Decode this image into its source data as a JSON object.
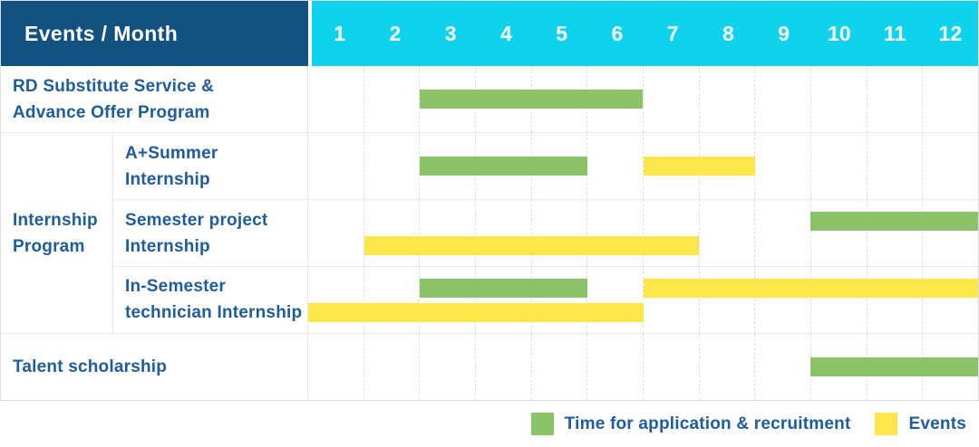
{
  "header": {
    "label": "Events / Month",
    "months": [
      "1",
      "2",
      "3",
      "4",
      "5",
      "6",
      "7",
      "8",
      "9",
      "10",
      "11",
      "12"
    ]
  },
  "colors": {
    "header_bg": "#135180",
    "month_strip_bg": "#10d2ec",
    "header_text": "#ffffff",
    "label_text": "#1e5c9b",
    "application_green": "#8cc269",
    "event_yellow": "#fde64a",
    "grid_line": "#e7e9eb",
    "month_divider": "#dde0e3"
  },
  "gantt": {
    "row_groups": [
      {
        "group_label_lines": null,
        "rows": [
          {
            "label_lines": [
              "RD Substitute Service &",
              "Advance Offer Program"
            ],
            "bars": [
              {
                "type": "application",
                "start": 3,
                "end": 6,
                "lane": "center"
              }
            ]
          }
        ]
      },
      {
        "group_label_lines": [
          "Internship",
          "Program"
        ],
        "rows": [
          {
            "label_lines": [
              "A+Summer",
              "Internship"
            ],
            "bars": [
              {
                "type": "application",
                "start": 3,
                "end": 5,
                "lane": "center"
              },
              {
                "type": "event",
                "start": 7,
                "end": 8,
                "lane": "center"
              }
            ]
          },
          {
            "label_lines": [
              "Semester project",
              "Internship"
            ],
            "bars": [
              {
                "type": "application",
                "start": 10,
                "end": 12,
                "lane": "top"
              },
              {
                "type": "event",
                "start": 2,
                "end": 7,
                "lane": "bottom"
              }
            ]
          },
          {
            "label_lines": [
              "In-Semester",
              "technician Internship"
            ],
            "bars": [
              {
                "type": "application",
                "start": 3,
                "end": 5,
                "lane": "top"
              },
              {
                "type": "event",
                "start": 7,
                "end": 12,
                "lane": "top"
              },
              {
                "type": "event",
                "start": 1,
                "end": 6,
                "lane": "bottom"
              }
            ]
          }
        ]
      },
      {
        "group_label_lines": null,
        "rows": [
          {
            "label_lines": [
              "Talent scholarship"
            ],
            "bars": [
              {
                "type": "application",
                "start": 10,
                "end": 12,
                "lane": "center"
              }
            ]
          }
        ]
      }
    ]
  },
  "legend": [
    {
      "type": "application",
      "label": "Time for application & recruitment"
    },
    {
      "type": "event",
      "label": "Events"
    }
  ],
  "chart_data": {
    "type": "table",
    "subtype": "gantt",
    "title": "Events / Month",
    "x": {
      "label": "Month",
      "ticks": [
        1,
        2,
        3,
        4,
        5,
        6,
        7,
        8,
        9,
        10,
        11,
        12
      ]
    },
    "legend": [
      "Time for application & recruitment",
      "Events"
    ],
    "rows": [
      {
        "event": "RD Substitute Service & Advance Offer Program",
        "group": null,
        "application_recruitment_months": [
          [
            3,
            6
          ]
        ],
        "event_months": []
      },
      {
        "event": "A+Summer Internship",
        "group": "Internship Program",
        "application_recruitment_months": [
          [
            3,
            5
          ]
        ],
        "event_months": [
          [
            7,
            8
          ]
        ]
      },
      {
        "event": "Semester project Internship",
        "group": "Internship Program",
        "application_recruitment_months": [
          [
            10,
            12
          ]
        ],
        "event_months": [
          [
            2,
            7
          ]
        ]
      },
      {
        "event": "In-Semester technician Internship",
        "group": "Internship Program",
        "application_recruitment_months": [
          [
            3,
            5
          ]
        ],
        "event_months": [
          [
            1,
            6
          ],
          [
            7,
            12
          ]
        ]
      },
      {
        "event": "Talent scholarship",
        "group": null,
        "application_recruitment_months": [
          [
            10,
            12
          ]
        ],
        "event_months": []
      }
    ]
  }
}
